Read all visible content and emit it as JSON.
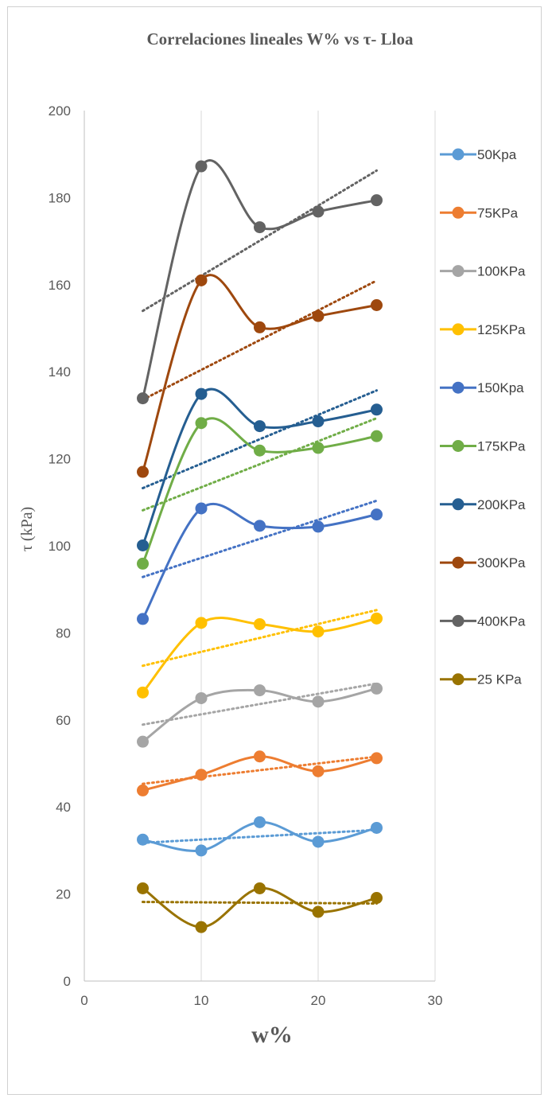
{
  "chart_data": {
    "type": "line",
    "title": "Correlaciones lineales W% vs τ- Lloa",
    "xlabel": "w%",
    "ylabel": "τ (kPa)",
    "xlim": [
      0,
      30
    ],
    "ylim": [
      0,
      200
    ],
    "xticks": [
      0,
      10,
      20,
      30
    ],
    "yticks": [
      0,
      20,
      40,
      60,
      80,
      100,
      120,
      140,
      160,
      180,
      200
    ],
    "grid": "vertical",
    "legend_position": "right",
    "x": [
      5,
      10,
      15,
      20,
      25
    ],
    "series": [
      {
        "name": "50Kpa",
        "color": "#5B9BD5",
        "values": [
          32.5,
          30.0,
          36.5,
          32.0,
          35.2
        ]
      },
      {
        "name": "75KPa",
        "color": "#ED7D31",
        "values": [
          43.8,
          47.4,
          51.6,
          48.2,
          51.2
        ]
      },
      {
        "name": "100KPa",
        "color": "#A5A5A5",
        "values": [
          55.0,
          65.0,
          66.8,
          64.2,
          67.2
        ]
      },
      {
        "name": "125KPa",
        "color": "#FFC000",
        "values": [
          66.3,
          82.3,
          82.0,
          80.3,
          83.3
        ]
      },
      {
        "name": "150Kpa",
        "color": "#4472C4",
        "values": [
          83.2,
          108.6,
          104.6,
          104.4,
          107.2
        ]
      },
      {
        "name": "175KPa",
        "color": "#70AD47",
        "values": [
          95.9,
          128.2,
          121.9,
          122.5,
          125.2
        ]
      },
      {
        "name": "200KPa",
        "color": "#255E91",
        "values": [
          100.1,
          134.9,
          127.5,
          128.6,
          131.3
        ]
      },
      {
        "name": "300KPa",
        "color": "#9E480E",
        "values": [
          117.0,
          161.0,
          150.2,
          152.8,
          155.3
        ]
      },
      {
        "name": "400KPa",
        "color": "#636363",
        "values": [
          133.9,
          187.2,
          173.2,
          176.8,
          179.4
        ]
      },
      {
        "name": "25 KPa",
        "color": "#997300",
        "values": [
          21.3,
          12.4,
          21.3,
          15.9,
          19.1
        ]
      }
    ]
  }
}
